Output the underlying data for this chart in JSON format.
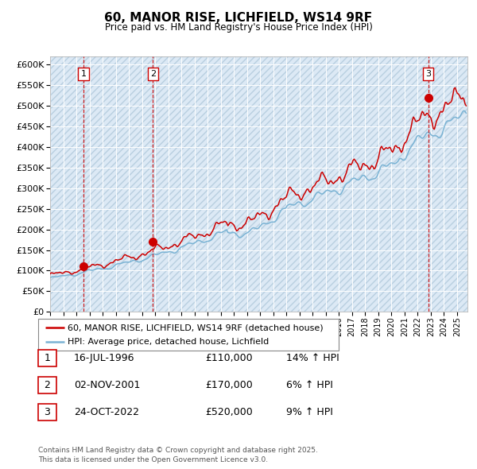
{
  "title": "60, MANOR RISE, LICHFIELD, WS14 9RF",
  "subtitle": "Price paid vs. HM Land Registry's House Price Index (HPI)",
  "ylim": [
    0,
    620000
  ],
  "yticks": [
    0,
    50000,
    100000,
    150000,
    200000,
    250000,
    300000,
    350000,
    400000,
    450000,
    500000,
    550000,
    600000
  ],
  "xlim_start": 1994.0,
  "xlim_end": 2025.8,
  "bg_color": "#dce9f5",
  "grid_color": "#ffffff",
  "hpi_color": "#7ab3d4",
  "price_color": "#cc0000",
  "dashed_color": "#cc0000",
  "legend_label_price": "60, MANOR RISE, LICHFIELD, WS14 9RF (detached house)",
  "legend_label_hpi": "HPI: Average price, detached house, Lichfield",
  "transactions": [
    {
      "num": 1,
      "date_x": 1996.54,
      "price": 110000
    },
    {
      "num": 2,
      "date_x": 2001.84,
      "price": 170000
    },
    {
      "num": 3,
      "date_x": 2022.81,
      "price": 520000
    }
  ],
  "table_rows": [
    {
      "num": "1",
      "date": "16-JUL-1996",
      "price": "£110,000",
      "hpi": "14% ↑ HPI"
    },
    {
      "num": "2",
      "date": "02-NOV-2001",
      "price": "£170,000",
      "hpi": "6% ↑ HPI"
    },
    {
      "num": "3",
      "date": "24-OCT-2022",
      "price": "£520,000",
      "hpi": "9% ↑ HPI"
    }
  ],
  "footer": "Contains HM Land Registry data © Crown copyright and database right 2025.\nThis data is licensed under the Open Government Licence v3.0."
}
